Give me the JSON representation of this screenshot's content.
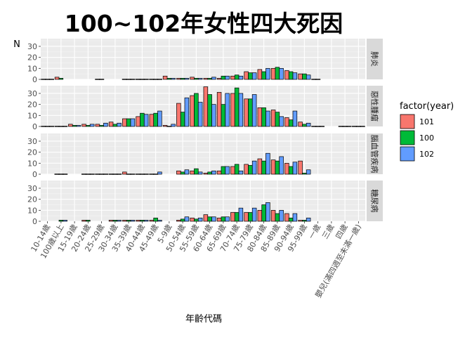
{
  "chart_data": {
    "type": "bar",
    "title": "100~102年女性四大死因",
    "ylabel": "N",
    "xlabel": "年齡代碼",
    "ylim": [
      0,
      37
    ],
    "yticks": [
      0,
      10,
      20,
      30
    ],
    "grid": true,
    "legend_title": "factor(year)",
    "legend_position": "right",
    "categories": [
      "10-14歲",
      "100歲以上",
      "15-19歲",
      "20-24歲",
      "25-29歲",
      "30-34歲",
      "35-39歲",
      "40-44歲",
      "45-49歲",
      "5-9歲",
      "50-54歲",
      "55-59歲",
      "60-64歲",
      "65-69歲",
      "70-74歲",
      "75-79歲",
      "80-84歲",
      "85-89歲",
      "90-94歲",
      "95-99歲",
      "一歲",
      "三歲",
      "四歲",
      "嬰兒(滿四週至未滿一歲)"
    ],
    "series": [
      {
        "name": "101",
        "color": "#F8766D"
      },
      {
        "name": "100",
        "color": "#00BA38"
      },
      {
        "name": "102",
        "color": "#619CFF"
      }
    ],
    "panels": [
      {
        "label": "肺炎",
        "values": {
          "101": [
            0,
            2,
            null,
            null,
            0,
            null,
            0,
            0,
            0,
            3,
            1,
            2,
            1,
            1,
            3,
            7,
            9,
            10,
            8,
            5
          ],
          "100": [
            0,
            1,
            null,
            null,
            0,
            null,
            0,
            0,
            0,
            1,
            1,
            1,
            1,
            3,
            4,
            6,
            7,
            11,
            7,
            5
          ],
          "102": [
            0,
            null,
            null,
            null,
            null,
            null,
            0,
            0,
            0,
            1,
            1,
            1,
            2,
            3,
            3,
            6,
            10,
            10,
            6,
            4
          ],
          "extra": {
            "一歲": [
              0,
              0,
              null
            ],
            "三歲": [
              null,
              null,
              null
            ],
            "四歲": [
              null,
              null,
              null
            ],
            "嬰兒(滿四週至未滿一歲)": [
              null,
              null,
              null
            ]
          }
        }
      },
      {
        "label": "惡性腫瘤",
        "values": {
          "101": [
            0,
            0,
            2,
            2,
            2,
            4,
            7,
            9,
            11,
            1,
            21,
            28,
            36,
            31,
            30,
            25,
            17,
            15,
            8,
            4
          ],
          "100": [
            0,
            0,
            1,
            1,
            1,
            2,
            7,
            12,
            12,
            0,
            13,
            30,
            29,
            20,
            35,
            25,
            17,
            13,
            6,
            2
          ],
          "102": [
            0,
            0,
            1,
            2,
            3,
            3,
            7,
            11,
            14,
            2,
            26,
            22,
            20,
            30,
            30,
            29,
            14,
            9,
            14,
            3
          ],
          "extra": {
            "一歲": [
              0,
              0,
              0
            ],
            "三歲": [
              null,
              null,
              null
            ],
            "四歲": [
              0,
              0,
              0
            ],
            "嬰兒(滿四週至未滿一歲)": [
              0,
              0,
              0
            ]
          }
        }
      },
      {
        "label": "腦血管疾病",
        "values": {
          "101": [
            null,
            0,
            null,
            0,
            0,
            0,
            2,
            0,
            0,
            null,
            3,
            3,
            1,
            3,
            7,
            9,
            14,
            13,
            10,
            12
          ],
          "100": [
            null,
            0,
            null,
            0,
            0,
            0,
            0,
            0,
            0,
            null,
            2,
            5,
            2,
            7,
            9,
            8,
            12,
            12,
            7,
            1
          ],
          "102": [
            null,
            0,
            null,
            0,
            0,
            0,
            0,
            0,
            2,
            null,
            4,
            2,
            3,
            7,
            3,
            12,
            19,
            16,
            11,
            4
          ],
          "extra": {
            "一歲": [
              null,
              null,
              null
            ],
            "三歲": [
              null,
              null,
              null
            ],
            "四歲": [
              null,
              null,
              null
            ],
            "嬰兒(滿四週至未滿一歲)": [
              null,
              null,
              null
            ]
          }
        }
      },
      {
        "label": "糖尿病",
        "values": {
          "101": [
            null,
            null,
            null,
            1,
            null,
            1,
            1,
            1,
            1,
            null,
            1,
            3,
            6,
            3,
            8,
            8,
            10,
            10,
            7,
            1
          ],
          "100": [
            null,
            1,
            null,
            1,
            null,
            1,
            1,
            1,
            3,
            null,
            2,
            2,
            4,
            4,
            8,
            8,
            15,
            7,
            3,
            1
          ],
          "102": [
            null,
            1,
            null,
            null,
            null,
            1,
            1,
            1,
            1,
            null,
            4,
            3,
            4,
            4,
            12,
            12,
            17,
            10,
            7,
            3
          ],
          "extra": {
            "一歲": [
              null,
              null,
              null
            ],
            "三歲": [
              null,
              null,
              null
            ],
            "四歲": [
              null,
              null,
              null
            ],
            "嬰兒(滿四週至未滿一歲)": [
              null,
              null,
              null
            ]
          }
        }
      }
    ]
  }
}
